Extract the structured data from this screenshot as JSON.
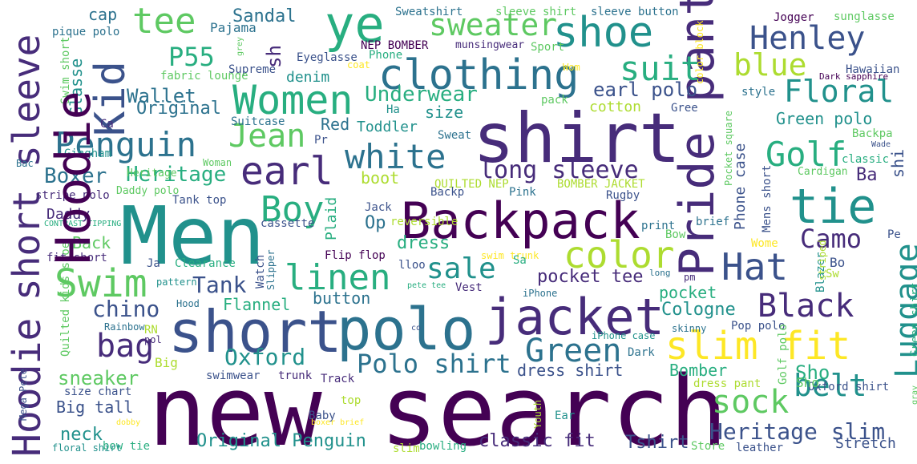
{
  "words": [
    "new search",
    "Men",
    "polo",
    "short",
    "shirt",
    "Backpack",
    "jacket",
    "Pride pant",
    "Hoodie",
    "short sleeve",
    "ye",
    "slim fit",
    "tie",
    "shoe",
    "Kid",
    "Women",
    "clothing",
    "Swim",
    "Penguin",
    "Jean",
    "earl",
    "white",
    "color",
    "linen",
    "suit",
    "Boy",
    "Hat",
    "Golf",
    "Henley",
    "Luggage",
    "Black",
    "bag",
    "Green",
    "Polo shirt",
    "sweater",
    "belt",
    "sale",
    "Floral",
    "long sleeve",
    "sock",
    "Heritage slim",
    "tee",
    "chino",
    "Tank",
    "Oxford",
    "Camo",
    "sneaker",
    "Original Penguin",
    "blue",
    "Underwear",
    "Heritage",
    "Boxer",
    "P55",
    "pocket tee",
    "dress shirt",
    "earl polo",
    "neck",
    "classic fit",
    "Tshirt",
    "Big tall",
    "Sandal",
    "sh",
    "Wallet",
    "Original",
    "Flannel",
    "Cologne",
    "Phone case",
    "Bomber",
    "pocket",
    "Green polo",
    "Sho",
    "dress",
    "boot",
    "button",
    "Stretch",
    "Glasse",
    "denim",
    "Plaid",
    "cotton",
    "size",
    "Red",
    "Toddler",
    "Back",
    "Daddy",
    "cap",
    "Pajama",
    "Supreme",
    "Sweatshirt",
    "sleeve shirt",
    "sleeve button",
    "NEP BOMBER",
    "munsingwear",
    "Jogger",
    "sunglasse",
    "pique polo",
    "Swim short",
    "fabric lounge",
    "Eyeglasse",
    "Phone",
    "Sport",
    "Hawaiian",
    "Dark sapphire",
    "style",
    "Gree",
    "pack",
    "Ha",
    "Ca",
    "Suitcase",
    "Pr",
    "Sweat",
    "Gingham",
    "Heritage",
    "Woman",
    "QUILTED NEP",
    "BOMBER JACKET",
    "Pocket square",
    "Cardigan",
    "classic",
    "Backpa",
    "Wade",
    "Ba",
    "shi",
    "Mens short",
    "stripe polo",
    "Daddy polo",
    "Tank top",
    "Backp",
    "Pink",
    "Rugby",
    "print",
    "brief",
    "CONTRAST TIPPING",
    "Jack",
    "reversible",
    "Op",
    "cassette",
    "swim trunk",
    "Bow",
    "Wome",
    "Pe",
    "fit short",
    "Ja",
    "Clearance",
    "Watch",
    "Slipper",
    "Flip flop",
    "lloo",
    "Sa",
    "long",
    "Bo",
    "Blazer",
    "striped",
    "Sw",
    "pattern",
    "Hood",
    "Quilted kids shoe",
    "Vest",
    "iPhone",
    "pete tee",
    "pm",
    "Rainbow",
    "RN",
    "pol",
    "co",
    "iPhone case",
    "skinny",
    "Pop polo",
    "Dark",
    "Golf polo",
    "Green shirt",
    "Big",
    "swimwear",
    "trunk",
    "Track",
    "dress pant",
    "Oxford shirt",
    "gray",
    "Mega Pete",
    "size chart",
    "Baby",
    "top",
    "Youth",
    "Ear",
    "boxer brief",
    "dobby",
    "bow tie",
    "floral shirt",
    "slim",
    "bowling",
    "Store",
    "leather",
    "color block",
    "grey",
    "Sho",
    "coat",
    "Wom",
    "Bac",
    "Hoodie"
  ],
  "colors": {
    "dark_purple": "#440154",
    "purple": "#472c7a",
    "indigo": "#3b528b",
    "blue": "#2c728e",
    "teal": "#21918c",
    "green_teal": "#28ae80",
    "green": "#5ec962",
    "light_green": "#addc30",
    "yellow": "#fde725",
    "background": "#ffffff"
  }
}
